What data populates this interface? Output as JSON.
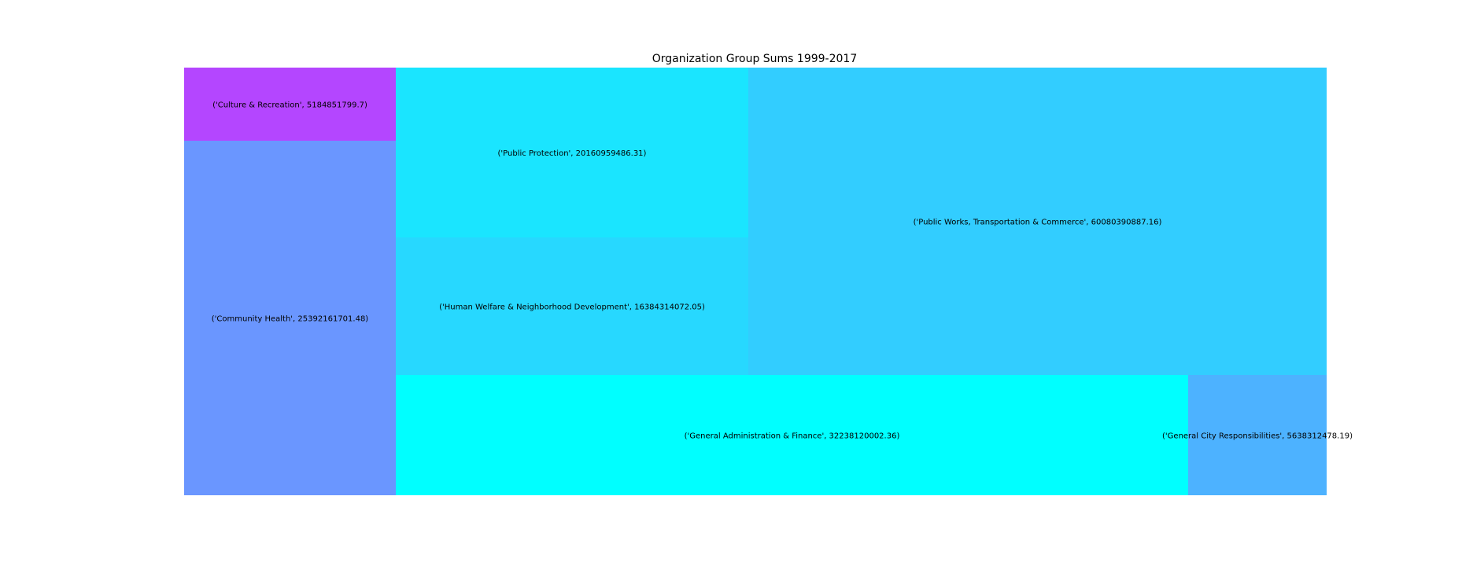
{
  "chart_data": {
    "type": "treemap",
    "title": "Organization Group Sums 1999-2017",
    "xlabel": "",
    "ylabel": "",
    "grid": false,
    "axes_visible": false,
    "tiles": [
      {
        "name": "Culture & Recreation",
        "value": 5184851799.7,
        "label": "('Culture & Recreation', 5184851799.7)",
        "color": "#b446ff"
      },
      {
        "name": "Community Health",
        "value": 25392161701.48,
        "label": "('Community Health', 25392161701.48)",
        "color": "#6a96ff"
      },
      {
        "name": "Public Protection",
        "value": 20160959486.31,
        "label": "('Public Protection', 20160959486.31)",
        "color": "#1ae5ff"
      },
      {
        "name": "Human Welfare & Neighborhood Development",
        "value": 16384314072.05,
        "label": "('Human Welfare & Neighborhood Development', 16384314072.05)",
        "color": "#27d8ff"
      },
      {
        "name": "Public Works, Transportation & Commerce",
        "value": 60080390887.16,
        "label": "('Public Works, Transportation & Commerce', 60080390887.16)",
        "color": "#32cdff"
      },
      {
        "name": "General Administration & Finance",
        "value": 32238120002.36,
        "label": "('General Administration & Finance', 32238120002.36)",
        "color": "#00ffff"
      },
      {
        "name": "General City Responsibilities",
        "value": 5638312478.19,
        "label": "('General City Responsibilities', 5638312478.19)",
        "color": "#4db2ff"
      }
    ]
  }
}
